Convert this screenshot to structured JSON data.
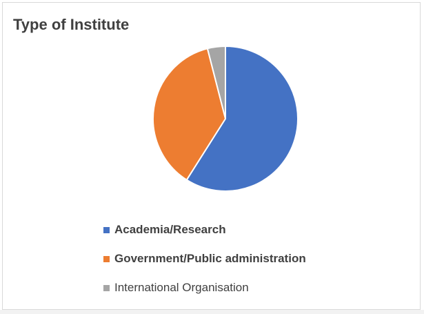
{
  "chart_data": {
    "type": "pie",
    "title": "Type of Institute",
    "categories": [
      "Academia/Research",
      "Government/Public administration",
      "International Organisation"
    ],
    "values": [
      59,
      37,
      4
    ],
    "colors": [
      "#4472c4",
      "#ed7d31",
      "#a5a5a5"
    ],
    "bold_labels": [
      true,
      true,
      false
    ],
    "legend_position": "bottom",
    "start_angle_deg": 0,
    "direction": "clockwise"
  }
}
